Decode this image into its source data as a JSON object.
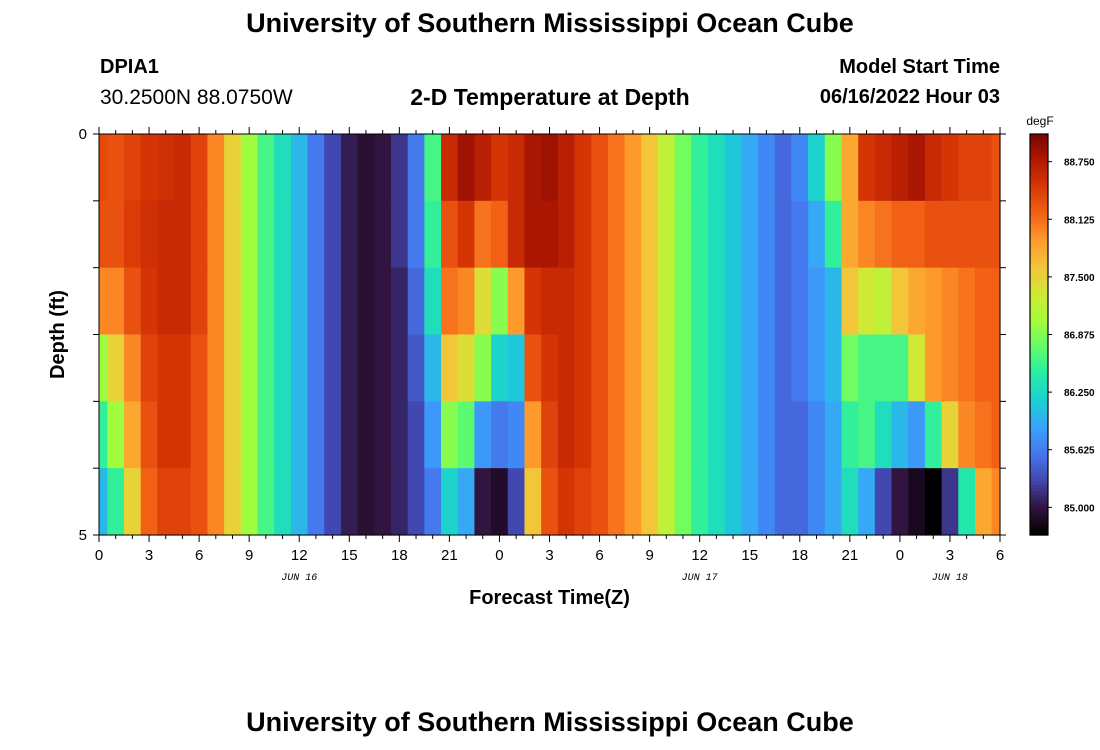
{
  "header": {
    "title": "University of Southern Mississippi Ocean Cube",
    "station": "DPIA1",
    "coords": "30.2500N  88.0750W",
    "subtitle": "2-D Temperature at Depth",
    "start_label": "Model Start Time",
    "start_value": "06/16/2022 Hour 03"
  },
  "footer": {
    "title": "University of Southern Mississippi Ocean Cube"
  },
  "chart_data": {
    "type": "heatmap",
    "xlabel": "Forecast Time(Z)",
    "ylabel": "Depth (ft)",
    "x_start": "2022-06-16 00Z",
    "x_step_hours": 1,
    "xlim_hours": [
      0,
      54
    ],
    "x_tick_labels": [
      "0",
      "3",
      "6",
      "9",
      "12",
      "15",
      "18",
      "21",
      "0",
      "3",
      "6",
      "9",
      "12",
      "15",
      "18",
      "21",
      "0",
      "3",
      "6"
    ],
    "date_labels": [
      {
        "hour": 12,
        "text": "JUN 16"
      },
      {
        "hour": 36,
        "text": "JUN 17"
      },
      {
        "hour": 51,
        "text": "JUN 18"
      }
    ],
    "y_ticks": [
      0,
      5
    ],
    "ylim": [
      0,
      5
    ],
    "depth_levels": 5,
    "colorbar": {
      "unit": "degF",
      "tick_labels": [
        "88.750",
        "88.125",
        "87.500",
        "86.875",
        "86.250",
        "85.625",
        "85.000"
      ],
      "tick_values": [
        88.75,
        88.125,
        87.5,
        86.875,
        86.25,
        85.625,
        85.0
      ],
      "min": 84.7,
      "max": 89.05,
      "colors": [
        "#000000",
        "#30123b",
        "#4145ab",
        "#4675ed",
        "#39a2fc",
        "#1bcfd4",
        "#24eca6",
        "#61fc6c",
        "#a4fc3b",
        "#d1e834",
        "#f3c63a",
        "#fe9b2d",
        "#f36315",
        "#d93806",
        "#b11901",
        "#7a0403"
      ]
    },
    "values": [
      [
        88.35,
        88.3,
        88.4,
        88.5,
        88.55,
        88.6,
        88.4,
        88.0,
        87.5,
        87.0,
        86.6,
        86.3,
        86.0,
        85.6,
        85.3,
        85.05,
        84.95,
        85.0,
        85.2,
        85.6,
        86.6,
        88.6,
        88.85,
        88.7,
        88.5,
        88.6,
        88.8,
        88.85,
        88.7,
        88.5,
        88.3,
        88.1,
        87.9,
        87.6,
        87.2,
        86.8,
        86.5,
        86.3,
        86.1,
        85.9,
        85.7,
        85.5,
        85.7,
        86.2,
        86.9,
        87.8,
        88.5,
        88.6,
        88.7,
        88.8,
        88.6,
        88.5,
        88.4,
        88.4,
        88.3
      ],
      [
        88.3,
        88.3,
        88.45,
        88.55,
        88.6,
        88.6,
        88.4,
        88.0,
        87.5,
        87.0,
        86.6,
        86.3,
        86.0,
        85.6,
        85.3,
        85.05,
        84.95,
        85.0,
        85.2,
        85.6,
        86.5,
        88.3,
        88.5,
        88.1,
        88.2,
        88.6,
        88.8,
        88.8,
        88.7,
        88.5,
        88.3,
        88.1,
        87.9,
        87.6,
        87.2,
        86.8,
        86.5,
        86.3,
        86.1,
        85.9,
        85.7,
        85.5,
        85.6,
        85.9,
        86.5,
        87.8,
        88.0,
        88.1,
        88.2,
        88.2,
        88.3,
        88.3,
        88.3,
        88.3,
        88.3
      ],
      [
        88.0,
        88.0,
        88.3,
        88.5,
        88.6,
        88.6,
        88.4,
        88.0,
        87.5,
        87.0,
        86.6,
        86.3,
        86.0,
        85.6,
        85.3,
        85.05,
        84.95,
        85.0,
        85.1,
        85.5,
        86.3,
        88.1,
        88.0,
        87.4,
        86.9,
        87.9,
        88.5,
        88.6,
        88.6,
        88.5,
        88.3,
        88.1,
        87.9,
        87.6,
        87.2,
        86.8,
        86.5,
        86.3,
        86.1,
        85.9,
        85.7,
        85.5,
        85.6,
        85.8,
        86.0,
        87.6,
        87.3,
        87.2,
        87.6,
        87.8,
        87.9,
        88.0,
        88.1,
        88.2,
        88.2
      ],
      [
        87.0,
        87.5,
        88.0,
        88.4,
        88.5,
        88.5,
        88.3,
        88.0,
        87.5,
        87.0,
        86.6,
        86.3,
        86.0,
        85.6,
        85.3,
        85.05,
        84.95,
        85.0,
        85.1,
        85.4,
        86.0,
        87.6,
        87.4,
        86.9,
        86.2,
        86.1,
        88.3,
        88.5,
        88.6,
        88.5,
        88.3,
        88.1,
        87.9,
        87.6,
        87.2,
        86.8,
        86.5,
        86.3,
        86.1,
        85.9,
        85.7,
        85.5,
        85.6,
        85.8,
        86.0,
        86.8,
        86.6,
        86.6,
        86.6,
        87.3,
        87.9,
        88.0,
        88.1,
        88.2,
        88.2
      ],
      [
        86.5,
        87.0,
        87.8,
        88.3,
        88.5,
        88.5,
        88.3,
        88.0,
        87.5,
        87.0,
        86.6,
        86.3,
        86.0,
        85.6,
        85.3,
        85.05,
        84.95,
        85.0,
        85.1,
        85.3,
        85.8,
        86.9,
        86.7,
        85.8,
        85.6,
        85.7,
        87.9,
        88.4,
        88.6,
        88.5,
        88.3,
        88.1,
        87.9,
        87.6,
        87.2,
        86.8,
        86.5,
        86.3,
        86.1,
        85.9,
        85.7,
        85.5,
        85.5,
        85.7,
        85.9,
        86.5,
        86.6,
        86.3,
        86.0,
        85.8,
        86.5,
        87.5,
        88.0,
        88.1,
        88.2
      ],
      [
        86.0,
        86.5,
        87.5,
        88.2,
        88.4,
        88.4,
        88.3,
        88.0,
        87.5,
        87.0,
        86.6,
        86.3,
        86.0,
        85.6,
        85.3,
        85.05,
        84.95,
        85.0,
        85.1,
        85.3,
        85.6,
        86.2,
        85.9,
        85.0,
        84.9,
        85.3,
        87.6,
        88.3,
        88.5,
        88.4,
        88.3,
        88.1,
        87.9,
        87.6,
        87.2,
        86.8,
        86.5,
        86.3,
        86.1,
        85.9,
        85.7,
        85.5,
        85.5,
        85.7,
        85.9,
        86.3,
        85.9,
        85.3,
        85.0,
        84.85,
        84.55,
        85.2,
        86.4,
        87.8,
        88.0
      ]
    ]
  }
}
